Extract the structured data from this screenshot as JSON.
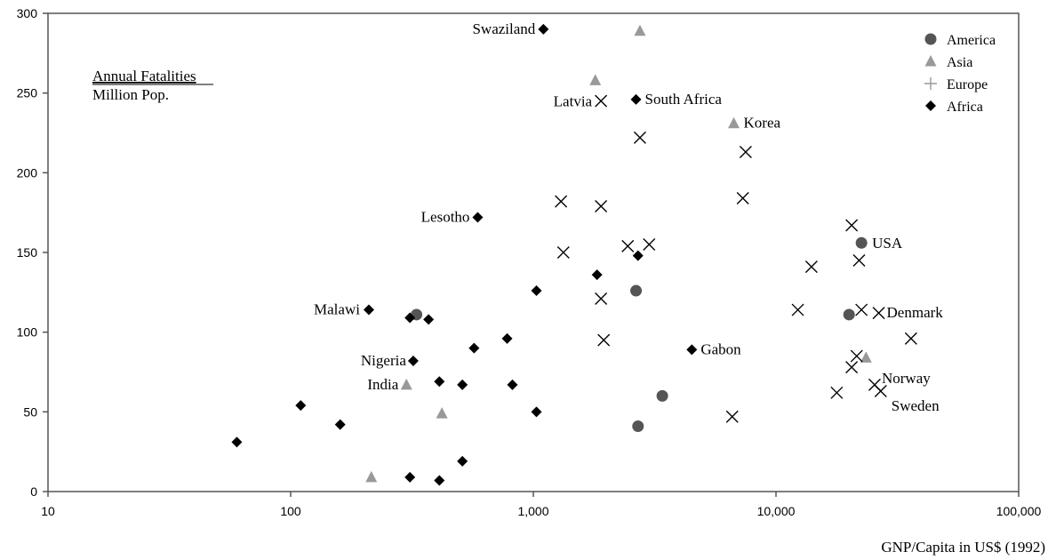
{
  "chart_data": {
    "type": "scatter",
    "x_scale": "log",
    "xlim": [
      10,
      100000
    ],
    "ylim": [
      0,
      300
    ],
    "x_ticks": [
      {
        "value": 10,
        "label": "10"
      },
      {
        "value": 100,
        "label": "100"
      },
      {
        "value": 1000,
        "label": "1,000"
      },
      {
        "value": 10000,
        "label": "10,000"
      },
      {
        "value": 100000,
        "label": "100,000"
      }
    ],
    "y_ticks": [
      {
        "value": 0,
        "label": "0"
      },
      {
        "value": 50,
        "label": "50"
      },
      {
        "value": 100,
        "label": "100"
      },
      {
        "value": 150,
        "label": "150"
      },
      {
        "value": 200,
        "label": "200"
      },
      {
        "value": 250,
        "label": "250"
      },
      {
        "value": 300,
        "label": "300"
      }
    ],
    "xlabel": "GNP/Capita in US$ (1992)",
    "ylabel_top": "Annual Fatalities",
    "ylabel_bottom": "Million Pop.",
    "grid": false,
    "legend_position": "top-right",
    "series": [
      {
        "name": "America",
        "marker": "circle",
        "color": "#555555",
        "points": [
          {
            "x": 330,
            "y": 111
          },
          {
            "x": 2650,
            "y": 126
          },
          {
            "x": 2700,
            "y": 41
          },
          {
            "x": 3400,
            "y": 60
          },
          {
            "x": 20000,
            "y": 111
          },
          {
            "x": 22500,
            "y": 156,
            "label": "USA"
          }
        ]
      },
      {
        "name": "Asia",
        "marker": "triangle",
        "color": "#999999",
        "points": [
          {
            "x": 215,
            "y": 9
          },
          {
            "x": 300,
            "y": 67,
            "label": "India"
          },
          {
            "x": 420,
            "y": 49
          },
          {
            "x": 1800,
            "y": 258
          },
          {
            "x": 2750,
            "y": 289
          },
          {
            "x": 6700,
            "y": 231,
            "label": "Korea"
          },
          {
            "x": 23500,
            "y": 84
          }
        ]
      },
      {
        "name": "Europe",
        "marker": "x",
        "color": "#000000",
        "points": [
          {
            "x": 1900,
            "y": 245,
            "label": "Latvia"
          },
          {
            "x": 2750,
            "y": 222
          },
          {
            "x": 7500,
            "y": 213
          },
          {
            "x": 7300,
            "y": 184
          },
          {
            "x": 1300,
            "y": 182
          },
          {
            "x": 1900,
            "y": 179
          },
          {
            "x": 20500,
            "y": 167
          },
          {
            "x": 2450,
            "y": 154
          },
          {
            "x": 3000,
            "y": 155
          },
          {
            "x": 1330,
            "y": 150
          },
          {
            "x": 14000,
            "y": 141
          },
          {
            "x": 22000,
            "y": 145
          },
          {
            "x": 1900,
            "y": 121
          },
          {
            "x": 12300,
            "y": 114
          },
          {
            "x": 22500,
            "y": 114
          },
          {
            "x": 26500,
            "y": 112,
            "label": "Denmark"
          },
          {
            "x": 1950,
            "y": 95
          },
          {
            "x": 36000,
            "y": 96
          },
          {
            "x": 21500,
            "y": 85
          },
          {
            "x": 20500,
            "y": 78
          },
          {
            "x": 25500,
            "y": 67,
            "label": "Norway"
          },
          {
            "x": 27000,
            "y": 63,
            "label": "Sweden"
          },
          {
            "x": 17800,
            "y": 62
          },
          {
            "x": 6600,
            "y": 47
          }
        ]
      },
      {
        "name": "Africa",
        "marker": "diamond",
        "color": "#000000",
        "points": [
          {
            "x": 1100,
            "y": 290,
            "label": "Swaziland"
          },
          {
            "x": 2650,
            "y": 246,
            "label": "South Africa"
          },
          {
            "x": 590,
            "y": 172,
            "label": "Lesotho"
          },
          {
            "x": 2700,
            "y": 148
          },
          {
            "x": 1830,
            "y": 136
          },
          {
            "x": 1030,
            "y": 126
          },
          {
            "x": 210,
            "y": 114,
            "label": "Malawi"
          },
          {
            "x": 310,
            "y": 109
          },
          {
            "x": 370,
            "y": 108
          },
          {
            "x": 780,
            "y": 96
          },
          {
            "x": 570,
            "y": 90
          },
          {
            "x": 4500,
            "y": 89,
            "label": "Gabon"
          },
          {
            "x": 320,
            "y": 82,
            "label": "Nigeria"
          },
          {
            "x": 410,
            "y": 69
          },
          {
            "x": 510,
            "y": 67
          },
          {
            "x": 820,
            "y": 67
          },
          {
            "x": 110,
            "y": 54
          },
          {
            "x": 1030,
            "y": 50
          },
          {
            "x": 160,
            "y": 42
          },
          {
            "x": 60,
            "y": 31
          },
          {
            "x": 510,
            "y": 19
          },
          {
            "x": 310,
            "y": 9
          },
          {
            "x": 410,
            "y": 7
          }
        ]
      }
    ]
  }
}
